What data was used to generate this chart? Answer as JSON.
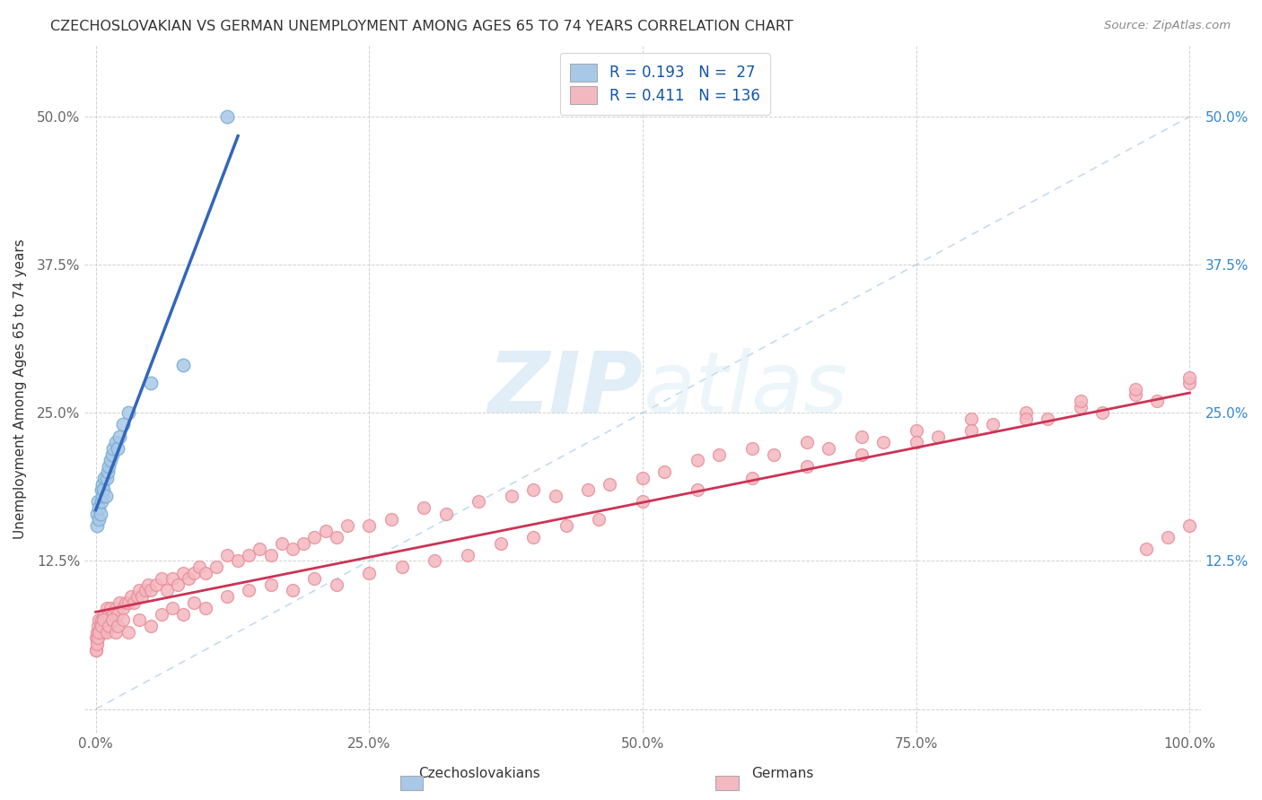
{
  "title": "CZECHOSLOVAKIAN VS GERMAN UNEMPLOYMENT AMONG AGES 65 TO 74 YEARS CORRELATION CHART",
  "source_text": "Source: ZipAtlas.com",
  "ylabel": "Unemployment Among Ages 65 to 74 years",
  "xlim": [
    -0.01,
    1.01
  ],
  "ylim": [
    -0.02,
    0.56
  ],
  "xticks": [
    0.0,
    0.25,
    0.5,
    0.75,
    1.0
  ],
  "xtick_labels": [
    "0.0%",
    "25.0%",
    "50.0%",
    "75.0%",
    "100.0%"
  ],
  "yticks": [
    0.0,
    0.125,
    0.25,
    0.375,
    0.5
  ],
  "ytick_labels_left": [
    "",
    "12.5%",
    "25.0%",
    "37.5%",
    "50.0%"
  ],
  "ytick_labels_right": [
    "",
    "12.5%",
    "25.0%",
    "37.5%",
    "50.0%"
  ],
  "background_color": "#ffffff",
  "grid_color": "#cccccc",
  "watermark_text": "ZIPatlas",
  "blue_color": "#a8c8e8",
  "blue_edge_color": "#7aaed0",
  "pink_color": "#f4b8c0",
  "pink_edge_color": "#e8909a",
  "blue_line_color": "#3366bb",
  "pink_line_color": "#cc3355",
  "diag_line_color": "#aaccee",
  "legend_blue_color": "#a8c8e8",
  "legend_pink_color": "#f4b8c0",
  "legend_text_color": "#1155aa",
  "title_color": "#333333",
  "source_color": "#888888",
  "ylabel_color": "#333333",
  "tick_color": "#666666",
  "right_tick_color": "#3388cc",
  "czech_x": [
    0.001,
    0.001,
    0.002,
    0.003,
    0.003,
    0.004,
    0.005,
    0.005,
    0.006,
    0.006,
    0.007,
    0.008,
    0.009,
    0.01,
    0.011,
    0.012,
    0.013,
    0.015,
    0.016,
    0.018,
    0.02,
    0.022,
    0.025,
    0.03,
    0.05,
    0.08,
    0.12
  ],
  "czech_y": [
    0.165,
    0.155,
    0.175,
    0.16,
    0.17,
    0.165,
    0.185,
    0.175,
    0.19,
    0.18,
    0.185,
    0.195,
    0.18,
    0.195,
    0.2,
    0.205,
    0.21,
    0.215,
    0.22,
    0.225,
    0.22,
    0.23,
    0.24,
    0.25,
    0.275,
    0.29,
    0.5
  ],
  "german_x": [
    0.0,
    0.0,
    0.001,
    0.001,
    0.002,
    0.002,
    0.003,
    0.003,
    0.004,
    0.005,
    0.005,
    0.006,
    0.007,
    0.007,
    0.008,
    0.009,
    0.01,
    0.01,
    0.012,
    0.013,
    0.015,
    0.016,
    0.018,
    0.02,
    0.022,
    0.025,
    0.027,
    0.03,
    0.032,
    0.035,
    0.038,
    0.04,
    0.042,
    0.045,
    0.048,
    0.05,
    0.055,
    0.06,
    0.065,
    0.07,
    0.075,
    0.08,
    0.085,
    0.09,
    0.095,
    0.1,
    0.11,
    0.12,
    0.13,
    0.14,
    0.15,
    0.16,
    0.17,
    0.18,
    0.19,
    0.2,
    0.21,
    0.22,
    0.23,
    0.25,
    0.27,
    0.3,
    0.32,
    0.35,
    0.38,
    0.4,
    0.42,
    0.45,
    0.47,
    0.5,
    0.52,
    0.55,
    0.57,
    0.6,
    0.62,
    0.65,
    0.67,
    0.7,
    0.72,
    0.75,
    0.77,
    0.8,
    0.82,
    0.85,
    0.87,
    0.9,
    0.92,
    0.95,
    0.97,
    1.0,
    0.0,
    0.001,
    0.002,
    0.003,
    0.005,
    0.007,
    0.01,
    0.012,
    0.015,
    0.018,
    0.02,
    0.025,
    0.03,
    0.04,
    0.05,
    0.06,
    0.07,
    0.08,
    0.09,
    0.1,
    0.12,
    0.14,
    0.16,
    0.18,
    0.2,
    0.22,
    0.25,
    0.28,
    0.31,
    0.34,
    0.37,
    0.4,
    0.43,
    0.46,
    0.5,
    0.55,
    0.6,
    0.65,
    0.7,
    0.75,
    0.8,
    0.85,
    0.9,
    0.95,
    1.0,
    1.0,
    0.98,
    0.96
  ],
  "german_y": [
    0.05,
    0.06,
    0.055,
    0.065,
    0.06,
    0.07,
    0.065,
    0.075,
    0.07,
    0.075,
    0.065,
    0.07,
    0.075,
    0.065,
    0.08,
    0.07,
    0.075,
    0.085,
    0.08,
    0.085,
    0.075,
    0.08,
    0.085,
    0.08,
    0.09,
    0.085,
    0.09,
    0.09,
    0.095,
    0.09,
    0.095,
    0.1,
    0.095,
    0.1,
    0.105,
    0.1,
    0.105,
    0.11,
    0.1,
    0.11,
    0.105,
    0.115,
    0.11,
    0.115,
    0.12,
    0.115,
    0.12,
    0.13,
    0.125,
    0.13,
    0.135,
    0.13,
    0.14,
    0.135,
    0.14,
    0.145,
    0.15,
    0.145,
    0.155,
    0.155,
    0.16,
    0.17,
    0.165,
    0.175,
    0.18,
    0.185,
    0.18,
    0.185,
    0.19,
    0.195,
    0.2,
    0.21,
    0.215,
    0.22,
    0.215,
    0.225,
    0.22,
    0.23,
    0.225,
    0.235,
    0.23,
    0.245,
    0.24,
    0.25,
    0.245,
    0.255,
    0.25,
    0.265,
    0.26,
    0.275,
    0.05,
    0.055,
    0.06,
    0.065,
    0.07,
    0.075,
    0.065,
    0.07,
    0.075,
    0.065,
    0.07,
    0.075,
    0.065,
    0.075,
    0.07,
    0.08,
    0.085,
    0.08,
    0.09,
    0.085,
    0.095,
    0.1,
    0.105,
    0.1,
    0.11,
    0.105,
    0.115,
    0.12,
    0.125,
    0.13,
    0.14,
    0.145,
    0.155,
    0.16,
    0.175,
    0.185,
    0.195,
    0.205,
    0.215,
    0.225,
    0.235,
    0.245,
    0.26,
    0.27,
    0.28,
    0.155,
    0.145,
    0.135
  ]
}
